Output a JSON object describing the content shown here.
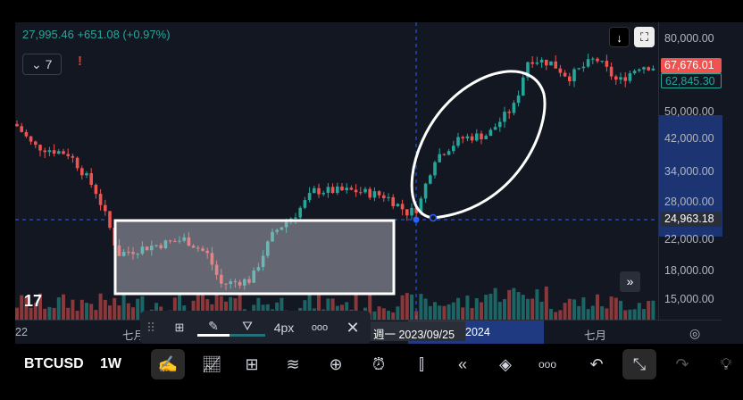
{
  "header": {
    "ohlc_text": "27,995.46  +651.08 (+0.97%)",
    "indicator_count": "7",
    "alert_icon": "!",
    "scroll_down_icon": "↓"
  },
  "price_axis": {
    "ticks": [
      "80,000.00",
      "50,000.00",
      "42,000.00",
      "34,000.00",
      "28,000.00",
      "22,000.00",
      "18,000.00",
      "15,000.00"
    ],
    "last_price": "67,676.01",
    "prev_close": "62,845.30",
    "crosshair_price": "24,963.18"
  },
  "time_axis": {
    "labels": [
      "22",
      "七月",
      "2024",
      "七月"
    ],
    "crosshair_date": "週一 2023/09/25"
  },
  "drawing_toolbar": {
    "width_label": "4px",
    "more": "ooo",
    "close": "✕"
  },
  "bottom_toolbar": {
    "symbol": "BTCUSD",
    "interval": "1W"
  },
  "colors": {
    "up": "#26a69a",
    "down": "#ef5350",
    "background": "#131722",
    "crosshair": "#2962ff",
    "highlight": "#1f3a80"
  }
}
